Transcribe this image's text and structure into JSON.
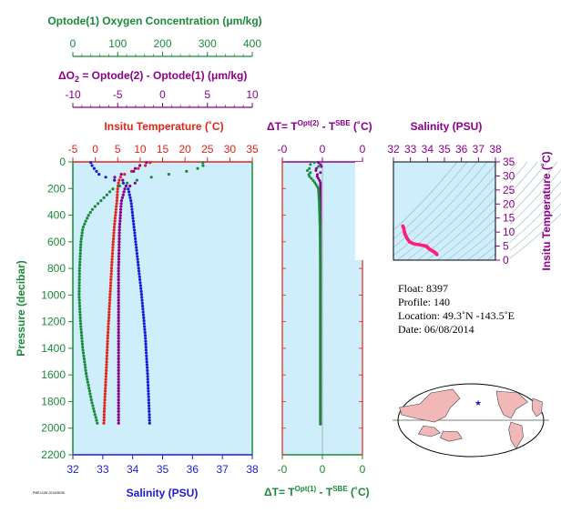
{
  "colors": {
    "oxygen": "#1a8a3a",
    "delta_o2": "#8b008b",
    "temperature": "#e0241b",
    "salinity": "#1b1bd6",
    "panel_bg": "#cdeefa",
    "land": "#f2b8b8",
    "axis": "#000000"
  },
  "labels": {
    "oxygen_title": "Optode(1) Oxygen Concentration (μm/kg)",
    "delta_o2_title_prefix": "ΔO",
    "delta_o2_title_sub": "2",
    "delta_o2_title_rest": " = Optode(2) - Optode(1)   (μm/kg)",
    "temperature_title": "Insitu Temperature (˚C)",
    "dt_top_prefix": "ΔT= T",
    "dt_top_sup1": "Opt(2)",
    "dt_top_mid": " - T",
    "dt_top_sup2": "SBE",
    "dt_top_suffix": " (˚C)",
    "dt_bottom_sup1": "Opt(1)",
    "salinity_top_title": "Salinity (PSU)",
    "salinity_bottom_title": "Salinity (PSU)",
    "pressure_axis": "Pressure (decibar)",
    "insitu_temp_axis": "Insitu Temperature (˚C)",
    "tiny_footer": "PMEL/UW 2014/06/08"
  },
  "info": {
    "float": "Float:  8397",
    "profile": "Profile:  140",
    "location": "Location:  49.3˚N  -143.5˚E",
    "date": "Date:  06/08/2014"
  },
  "chart_data": [
    {
      "type": "line",
      "panel": "main-profile",
      "ylabel": "Pressure (decibar)",
      "ylim": [
        2200,
        0
      ],
      "yticks": [
        0,
        200,
        400,
        600,
        800,
        1000,
        1200,
        1400,
        1600,
        1800,
        2000,
        2200
      ],
      "axes": {
        "oxygen": {
          "label": "Optode(1) Oxygen Concentration (μm/kg)",
          "range": [
            0,
            400
          ],
          "ticks": [
            0,
            100,
            200,
            300,
            400
          ]
        },
        "delta_o2": {
          "label": "ΔO2 = Optode(2) - Optode(1)   (μm/kg)",
          "range": [
            -10,
            10
          ],
          "ticks": [
            -10,
            -5,
            0,
            5,
            10
          ]
        },
        "temperature": {
          "label": "Insitu Temperature (˚C)",
          "range": [
            -5,
            35
          ],
          "ticks": [
            -5,
            0,
            5,
            10,
            15,
            20,
            25,
            30,
            35
          ]
        },
        "salinity": {
          "label": "Salinity (PSU)",
          "range": [
            32,
            38
          ],
          "ticks": [
            32,
            33,
            34,
            35,
            36,
            37,
            38
          ]
        }
      },
      "series": [
        {
          "key": "temperature",
          "axis": "temperature",
          "p": [
            5,
            15,
            30,
            50,
            80,
            100,
            120,
            150,
            200,
            300,
            400,
            500,
            700,
            1000,
            1300,
            1600,
            1800,
            1970
          ],
          "v": [
            12.2,
            11.8,
            11.0,
            9.5,
            7.5,
            6.0,
            5.5,
            5.2,
            5.0,
            4.8,
            4.5,
            4.2,
            3.8,
            3.3,
            2.8,
            2.4,
            2.1,
            1.9
          ]
        },
        {
          "key": "salinity",
          "axis": "salinity",
          "p": [
            5,
            30,
            60,
            100,
            130,
            160,
            200,
            300,
            400,
            500,
            700,
            1000,
            1300,
            1600,
            1800,
            1970
          ],
          "v": [
            32.6,
            32.65,
            32.75,
            32.9,
            33.3,
            33.7,
            33.85,
            33.95,
            34.0,
            34.05,
            34.15,
            34.3,
            34.42,
            34.5,
            34.54,
            34.57
          ]
        },
        {
          "key": "oxygen",
          "axis": "oxygen",
          "p": [
            5,
            20,
            40,
            60,
            80,
            100,
            130,
            160,
            200,
            250,
            300,
            350,
            400,
            450,
            500,
            600,
            800,
            1000,
            1200,
            1400,
            1600,
            1800,
            1970
          ],
          "v": [
            290,
            293,
            285,
            270,
            240,
            200,
            150,
            120,
            90,
            75,
            60,
            45,
            35,
            28,
            22,
            18,
            15,
            14,
            17,
            22,
            30,
            42,
            55
          ]
        },
        {
          "key": "delta_o2",
          "axis": "delta_o2",
          "p": [
            5,
            10,
            20,
            40,
            60,
            90,
            120,
            160,
            200,
            300,
            500,
            800,
            1200,
            1600,
            1970
          ],
          "v": [
            -1.8,
            4.0,
            -2.0,
            -3.5,
            -2.5,
            -4.5,
            -5.5,
            -3.0,
            -4.2,
            -4.6,
            -4.8,
            -4.9,
            -4.9,
            -4.9,
            -4.9
          ]
        }
      ]
    },
    {
      "type": "line",
      "panel": "delta-t",
      "xlabel_top": "ΔT= T^Opt(2) - T^SBE (˚C)",
      "xlabel_bottom": "ΔT= T^Opt(1) - T^SBE (˚C)",
      "xlim": [
        -1,
        1
      ],
      "xticks_labeled": [
        "-0",
        "0",
        "-0",
        "0"
      ],
      "ylim": [
        2200,
        0
      ],
      "series": [
        {
          "key": "dt_opt2",
          "color": "delta_o2",
          "p": [
            5,
            10,
            20,
            30,
            40,
            60,
            80,
            100,
            150,
            200,
            300,
            500,
            800,
            1200,
            1600,
            1970
          ],
          "v": [
            -0.1,
            0.1,
            -0.05,
            0.05,
            -0.1,
            -0.2,
            -0.05,
            -0.15,
            -0.05,
            -0.05,
            -0.05,
            -0.05,
            -0.05,
            -0.05,
            -0.05,
            -0.05
          ]
        },
        {
          "key": "dt_opt1",
          "color": "oxygen",
          "p": [
            5,
            10,
            20,
            30,
            40,
            60,
            80,
            100,
            150,
            200,
            300,
            500,
            800,
            1200,
            1600,
            1970
          ],
          "v": [
            -0.2,
            0.15,
            -0.3,
            0.05,
            -0.25,
            -0.4,
            -0.3,
            -0.35,
            -0.2,
            -0.1,
            -0.08,
            -0.06,
            -0.05,
            -0.05,
            -0.05,
            -0.05
          ]
        }
      ]
    },
    {
      "type": "scatter",
      "panel": "ts-diagram",
      "xlabel": "Salinity (PSU)",
      "ylabel": "Insitu Temperature (˚C)",
      "xlim": [
        32,
        38
      ],
      "ylim": [
        0,
        35
      ],
      "xticks": [
        32,
        33,
        34,
        35,
        36,
        37,
        38
      ],
      "yticks": [
        0,
        5,
        10,
        15,
        20,
        25,
        30,
        35
      ],
      "points": {
        "s": [
          32.55,
          32.6,
          32.65,
          32.7,
          32.8,
          32.95,
          33.2,
          33.6,
          33.85,
          33.95,
          34.0,
          34.05,
          34.15,
          34.3,
          34.42,
          34.5,
          34.57
        ],
        "t": [
          12.2,
          11.5,
          10.0,
          9.0,
          7.8,
          6.5,
          5.8,
          5.4,
          5.1,
          4.9,
          4.6,
          4.3,
          3.8,
          3.3,
          2.8,
          2.4,
          1.9
        ]
      }
    }
  ]
}
